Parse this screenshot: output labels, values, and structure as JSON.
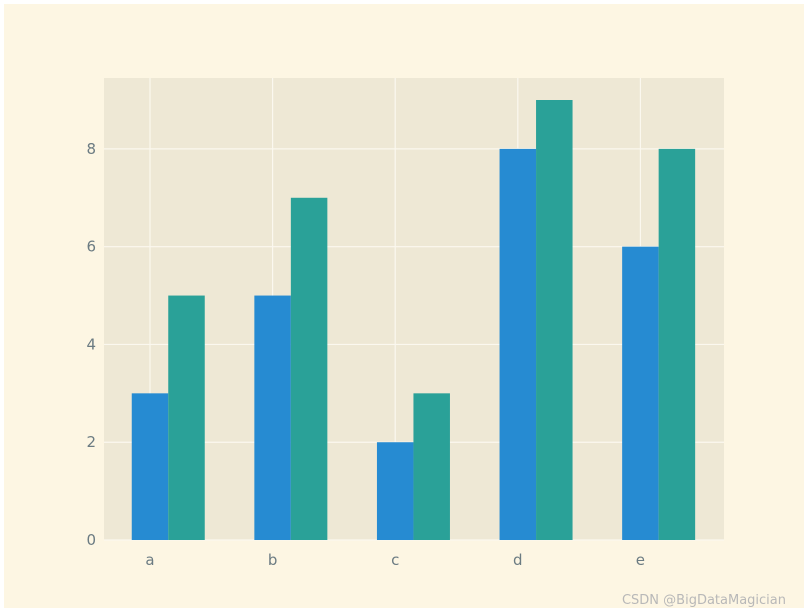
{
  "chart_data": {
    "type": "bar",
    "categories": [
      "a",
      "b",
      "c",
      "d",
      "e"
    ],
    "series": [
      {
        "values": [
          3,
          5,
          2,
          8,
          6
        ],
        "color": "#268bd2"
      },
      {
        "values": [
          5,
          7,
          3,
          9,
          8
        ],
        "color": "#2aa198"
      }
    ],
    "title": "",
    "xlabel": "",
    "ylabel": "",
    "ylim": [
      0,
      9.45
    ],
    "yticks": [
      0,
      2,
      4,
      6,
      8
    ],
    "grid": true,
    "legend": "none",
    "colors": {
      "figure_background": "#fdf6e3",
      "axes_background": "#eee8d5",
      "grid": "#fbf8ef",
      "tick_label": "#6b7b82"
    }
  },
  "watermark": "CSDN @BigDataMagician"
}
